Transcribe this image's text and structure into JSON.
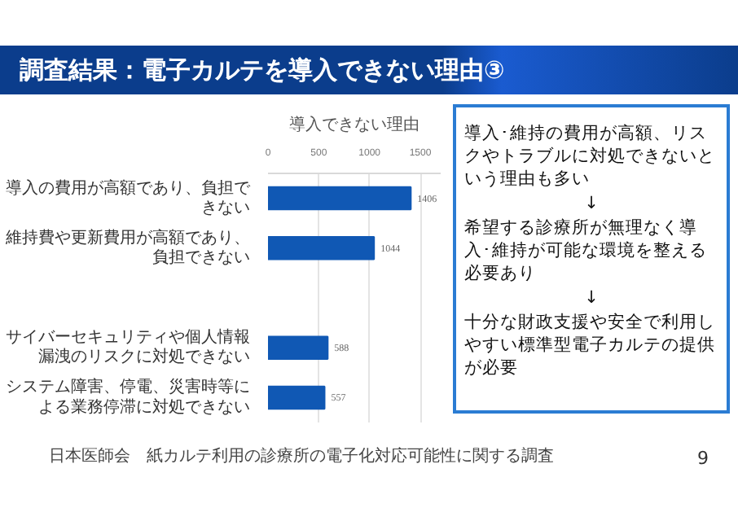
{
  "chart_data": {
    "type": "bar",
    "orientation": "horizontal",
    "title": "調査結果：電子カルテを導入できない理由③",
    "subtitle": "導入できない理由",
    "categories": [
      "導入の費用が高額であり、負担できない",
      "維持費や更新費用が高額であり、負担できない",
      null,
      "サイバーセキュリティや個人情報漏洩のリスクに対処できない",
      "システム障害、停電、災害時等による業務停滞に対処できない"
    ],
    "values": [
      1406,
      1044,
      null,
      588,
      557
    ],
    "color": "#1058b4",
    "data_labels": true,
    "xlim": [
      0,
      1700
    ],
    "xticks": [
      0,
      500,
      1000,
      1500
    ],
    "grid": "x",
    "legend": false,
    "annotations": [
      "導入･維持の費用が高額、リスクやトラブルに対処できないという理由も多い",
      "↓",
      "希望する診療所が無理なく導入･維持が可能な環境を整える必要あり",
      "↓",
      "十分な財政支援や安全で利用しやすい標準型電子カルテの提供が必要",
      "日本医師会　紙カルテ利用の診療所の電子化対応可能性に関する調査",
      "9"
    ]
  }
}
